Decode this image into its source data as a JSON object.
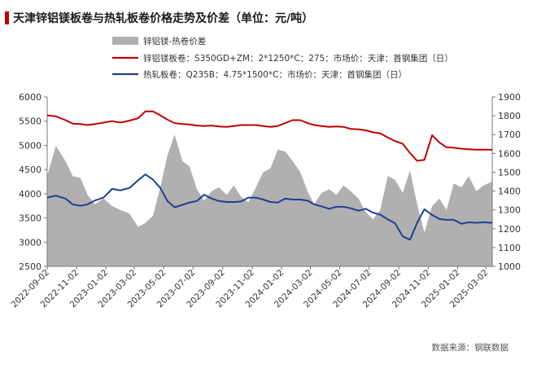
{
  "chart_data": {
    "type": "line",
    "title": "天津锌铝镁板卷与热轧板卷价格走势及价差（单位：元/吨）",
    "source": "数据来源：钢联数据",
    "colors": {
      "spread": "#b0b0b0",
      "znalmg": "#c00000",
      "hrc": "#1f3f8f",
      "title_bar": "#c00000"
    },
    "x_ticks": [
      "2022-09-02",
      "2022-11-02",
      "2023-01-02",
      "2023-03-02",
      "2023-05-02",
      "2023-07-02",
      "2023-09-02",
      "2023-11-02",
      "2024-01-02",
      "2024-03-02",
      "2024-05-02",
      "2024-07-02",
      "2024-09-02",
      "2024-11-02",
      "2025-01-02",
      "2025-03-02"
    ],
    "y_left": {
      "min": 2500,
      "max": 6000,
      "ticks": [
        2500,
        3000,
        3500,
        4000,
        4500,
        5000,
        5500,
        6000
      ]
    },
    "y_right": {
      "min": 1000,
      "max": 1900,
      "ticks": [
        1000,
        1100,
        1200,
        1300,
        1400,
        1500,
        1600,
        1700,
        1800,
        1900
      ]
    },
    "legend": [
      {
        "name": "锌铝镁-热卷价差",
        "kind": "area"
      },
      {
        "name": "锌铝镁板卷：S350GD+ZM：2*1250*C：275：市场价：天津：首钢集团（日）",
        "kind": "line"
      },
      {
        "name": "热轧板卷：Q235B：4.75*1500*C：市场价：天津：首钢集团（日）",
        "kind": "line"
      }
    ],
    "series": [
      {
        "name": "锌铝镁-热卷价差",
        "axis": "right",
        "x": [
          "2022-09-02",
          "2022-09-20",
          "2022-10-10",
          "2022-10-25",
          "2022-11-10",
          "2022-11-25",
          "2022-12-10",
          "2022-12-28",
          "2023-01-15",
          "2023-02-01",
          "2023-02-20",
          "2023-03-10",
          "2023-03-25",
          "2023-04-10",
          "2023-04-25",
          "2023-05-10",
          "2023-05-25",
          "2023-06-10",
          "2023-06-25",
          "2023-07-10",
          "2023-07-25",
          "2023-08-10",
          "2023-08-25",
          "2023-09-10",
          "2023-09-25",
          "2023-10-10",
          "2023-10-25",
          "2023-11-10",
          "2023-11-25",
          "2023-12-10",
          "2023-12-25",
          "2024-01-10",
          "2024-01-25",
          "2024-02-10",
          "2024-02-25",
          "2024-03-10",
          "2024-03-25",
          "2024-04-10",
          "2024-04-25",
          "2024-05-10",
          "2024-05-25",
          "2024-06-10",
          "2024-06-25",
          "2024-07-10",
          "2024-07-25",
          "2024-08-10",
          "2024-08-25",
          "2024-09-10",
          "2024-09-25",
          "2024-10-10",
          "2024-10-25",
          "2024-11-10",
          "2024-11-25",
          "2024-12-10",
          "2024-12-25",
          "2025-01-10",
          "2025-01-25",
          "2025-02-10",
          "2025-02-25",
          "2025-03-15"
        ],
        "values": [
          1480,
          1640,
          1560,
          1480,
          1470,
          1380,
          1330,
          1360,
          1320,
          1300,
          1280,
          1210,
          1230,
          1270,
          1420,
          1590,
          1700,
          1560,
          1530,
          1410,
          1350,
          1400,
          1420,
          1380,
          1430,
          1370,
          1340,
          1420,
          1500,
          1520,
          1620,
          1610,
          1560,
          1500,
          1400,
          1330,
          1390,
          1410,
          1380,
          1430,
          1400,
          1360,
          1290,
          1250,
          1300,
          1480,
          1460,
          1390,
          1510,
          1330,
          1180,
          1320,
          1360,
          1300,
          1440,
          1420,
          1480,
          1400,
          1430,
          1450
        ]
      },
      {
        "name": "锌铝镁板卷：S350GD+ZM：2*1250*C：275：市场价：天津：首钢集团（日）",
        "axis": "left",
        "x": [
          "2022-09-02",
          "2022-09-20",
          "2022-10-10",
          "2022-10-25",
          "2022-11-10",
          "2022-11-25",
          "2022-12-10",
          "2022-12-28",
          "2023-01-15",
          "2023-02-01",
          "2023-02-20",
          "2023-03-10",
          "2023-03-25",
          "2023-04-10",
          "2023-04-25",
          "2023-05-10",
          "2023-05-25",
          "2023-06-10",
          "2023-06-25",
          "2023-07-10",
          "2023-07-25",
          "2023-08-10",
          "2023-08-25",
          "2023-09-10",
          "2023-09-25",
          "2023-10-10",
          "2023-10-25",
          "2023-11-10",
          "2023-11-25",
          "2023-12-10",
          "2023-12-25",
          "2024-01-10",
          "2024-01-25",
          "2024-02-10",
          "2024-02-25",
          "2024-03-10",
          "2024-03-25",
          "2024-04-10",
          "2024-04-25",
          "2024-05-10",
          "2024-05-25",
          "2024-06-10",
          "2024-06-25",
          "2024-07-10",
          "2024-07-25",
          "2024-08-10",
          "2024-08-25",
          "2024-09-10",
          "2024-09-25",
          "2024-10-10",
          "2024-10-25",
          "2024-11-10",
          "2024-11-25",
          "2024-12-10",
          "2024-12-25",
          "2025-01-10",
          "2025-01-25",
          "2025-02-10",
          "2025-02-25",
          "2025-03-15"
        ],
        "values": [
          5620,
          5600,
          5520,
          5450,
          5440,
          5420,
          5440,
          5470,
          5500,
          5470,
          5510,
          5560,
          5700,
          5700,
          5620,
          5530,
          5460,
          5440,
          5430,
          5410,
          5400,
          5410,
          5390,
          5380,
          5400,
          5420,
          5420,
          5420,
          5400,
          5380,
          5400,
          5460,
          5520,
          5520,
          5460,
          5420,
          5400,
          5380,
          5390,
          5380,
          5340,
          5330,
          5310,
          5270,
          5250,
          5160,
          5090,
          5030,
          4840,
          4680,
          4700,
          5210,
          5060,
          4960,
          4950,
          4930,
          4920,
          4910,
          4910,
          4910
        ]
      },
      {
        "name": "热轧板卷：Q235B：4.75*1500*C：市场价：天津：首钢集团（日）",
        "axis": "left",
        "x": [
          "2022-09-02",
          "2022-09-20",
          "2022-10-10",
          "2022-10-25",
          "2022-11-10",
          "2022-11-25",
          "2022-12-10",
          "2022-12-28",
          "2023-01-15",
          "2023-02-01",
          "2023-02-20",
          "2023-03-10",
          "2023-03-25",
          "2023-04-10",
          "2023-04-25",
          "2023-05-10",
          "2023-05-25",
          "2023-06-10",
          "2023-06-25",
          "2023-07-10",
          "2023-07-25",
          "2023-08-10",
          "2023-08-25",
          "2023-09-10",
          "2023-09-25",
          "2023-10-10",
          "2023-10-25",
          "2023-11-10",
          "2023-11-25",
          "2023-12-10",
          "2023-12-25",
          "2024-01-10",
          "2024-01-25",
          "2024-02-10",
          "2024-02-25",
          "2024-03-10",
          "2024-03-25",
          "2024-04-10",
          "2024-04-25",
          "2024-05-10",
          "2024-05-25",
          "2024-06-10",
          "2024-06-25",
          "2024-07-10",
          "2024-07-25",
          "2024-08-10",
          "2024-08-25",
          "2024-09-10",
          "2024-09-25",
          "2024-10-10",
          "2024-10-25",
          "2024-11-10",
          "2024-11-25",
          "2024-12-10",
          "2024-12-25",
          "2025-01-10",
          "2025-01-25",
          "2025-02-10",
          "2025-02-25",
          "2025-03-15"
        ],
        "values": [
          3920,
          3960,
          3900,
          3780,
          3750,
          3780,
          3860,
          3920,
          4100,
          4070,
          4120,
          4280,
          4400,
          4290,
          4120,
          3850,
          3720,
          3770,
          3820,
          3850,
          3980,
          3900,
          3850,
          3830,
          3830,
          3840,
          3920,
          3920,
          3880,
          3830,
          3820,
          3900,
          3880,
          3880,
          3860,
          3780,
          3740,
          3690,
          3730,
          3730,
          3700,
          3650,
          3690,
          3610,
          3570,
          3470,
          3390,
          3120,
          3050,
          3400,
          3680,
          3560,
          3480,
          3460,
          3460,
          3380,
          3410,
          3400,
          3410,
          3400
        ]
      }
    ]
  }
}
